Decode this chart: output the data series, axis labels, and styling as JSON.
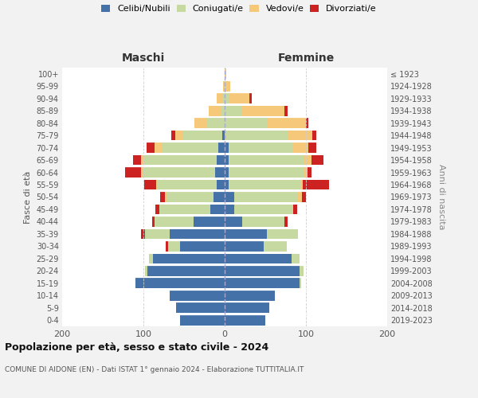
{
  "age_groups": [
    "0-4",
    "5-9",
    "10-14",
    "15-19",
    "20-24",
    "25-29",
    "30-34",
    "35-39",
    "40-44",
    "45-49",
    "50-54",
    "55-59",
    "60-64",
    "65-69",
    "70-74",
    "75-79",
    "80-84",
    "85-89",
    "90-94",
    "95-99",
    "100+"
  ],
  "birth_years": [
    "2019-2023",
    "2014-2018",
    "2009-2013",
    "2004-2008",
    "1999-2003",
    "1994-1998",
    "1989-1993",
    "1984-1988",
    "1979-1983",
    "1974-1978",
    "1969-1973",
    "1964-1968",
    "1959-1963",
    "1954-1958",
    "1949-1953",
    "1944-1948",
    "1939-1943",
    "1934-1938",
    "1929-1933",
    "1924-1928",
    "≤ 1923"
  ],
  "colors": {
    "celibe": "#4472a8",
    "coniugato": "#c5d9a0",
    "vedovo": "#f5c87a",
    "divorziato": "#cc2222"
  },
  "maschi": {
    "celibe": [
      55,
      60,
      68,
      110,
      95,
      88,
      55,
      68,
      38,
      18,
      14,
      10,
      12,
      10,
      8,
      3,
      0,
      0,
      0,
      0,
      0
    ],
    "coniugato": [
      0,
      0,
      0,
      0,
      3,
      5,
      15,
      30,
      48,
      62,
      58,
      72,
      88,
      88,
      68,
      48,
      22,
      5,
      2,
      0,
      0
    ],
    "vedovo": [
      0,
      0,
      0,
      0,
      0,
      0,
      0,
      0,
      0,
      0,
      2,
      2,
      3,
      5,
      10,
      10,
      15,
      15,
      8,
      2,
      0
    ],
    "divorziato": [
      0,
      0,
      0,
      0,
      0,
      0,
      3,
      5,
      3,
      5,
      5,
      15,
      20,
      10,
      10,
      5,
      0,
      0,
      0,
      0,
      0
    ]
  },
  "femmine": {
    "celibe": [
      50,
      55,
      62,
      92,
      92,
      82,
      48,
      52,
      22,
      12,
      12,
      5,
      5,
      5,
      5,
      0,
      0,
      0,
      0,
      0,
      0
    ],
    "coniugato": [
      0,
      0,
      0,
      2,
      5,
      10,
      28,
      38,
      52,
      72,
      78,
      88,
      92,
      92,
      78,
      78,
      52,
      22,
      5,
      2,
      0
    ],
    "vedovo": [
      0,
      0,
      0,
      0,
      0,
      0,
      0,
      0,
      0,
      0,
      5,
      3,
      5,
      10,
      20,
      30,
      48,
      52,
      25,
      5,
      2
    ],
    "divorziato": [
      0,
      0,
      0,
      0,
      0,
      0,
      0,
      0,
      3,
      5,
      5,
      32,
      5,
      15,
      10,
      5,
      3,
      3,
      3,
      0,
      0
    ]
  },
  "xlim": 200,
  "title": "Popolazione per età, sesso e stato civile - 2024",
  "subtitle": "COMUNE DI AIDONE (EN) - Dati ISTAT 1° gennaio 2024 - Elaborazione TUTTITALIA.IT",
  "ylabel_left": "Fasce di età",
  "ylabel_right": "Anni di nascita",
  "xlabel_maschi": "Maschi",
  "xlabel_femmine": "Femmine",
  "legend_labels": [
    "Celibi/Nubili",
    "Coniugati/e",
    "Vedovi/e",
    "Divorziati/e"
  ],
  "bg_color": "#f2f2f2",
  "plot_bg": "#ffffff"
}
